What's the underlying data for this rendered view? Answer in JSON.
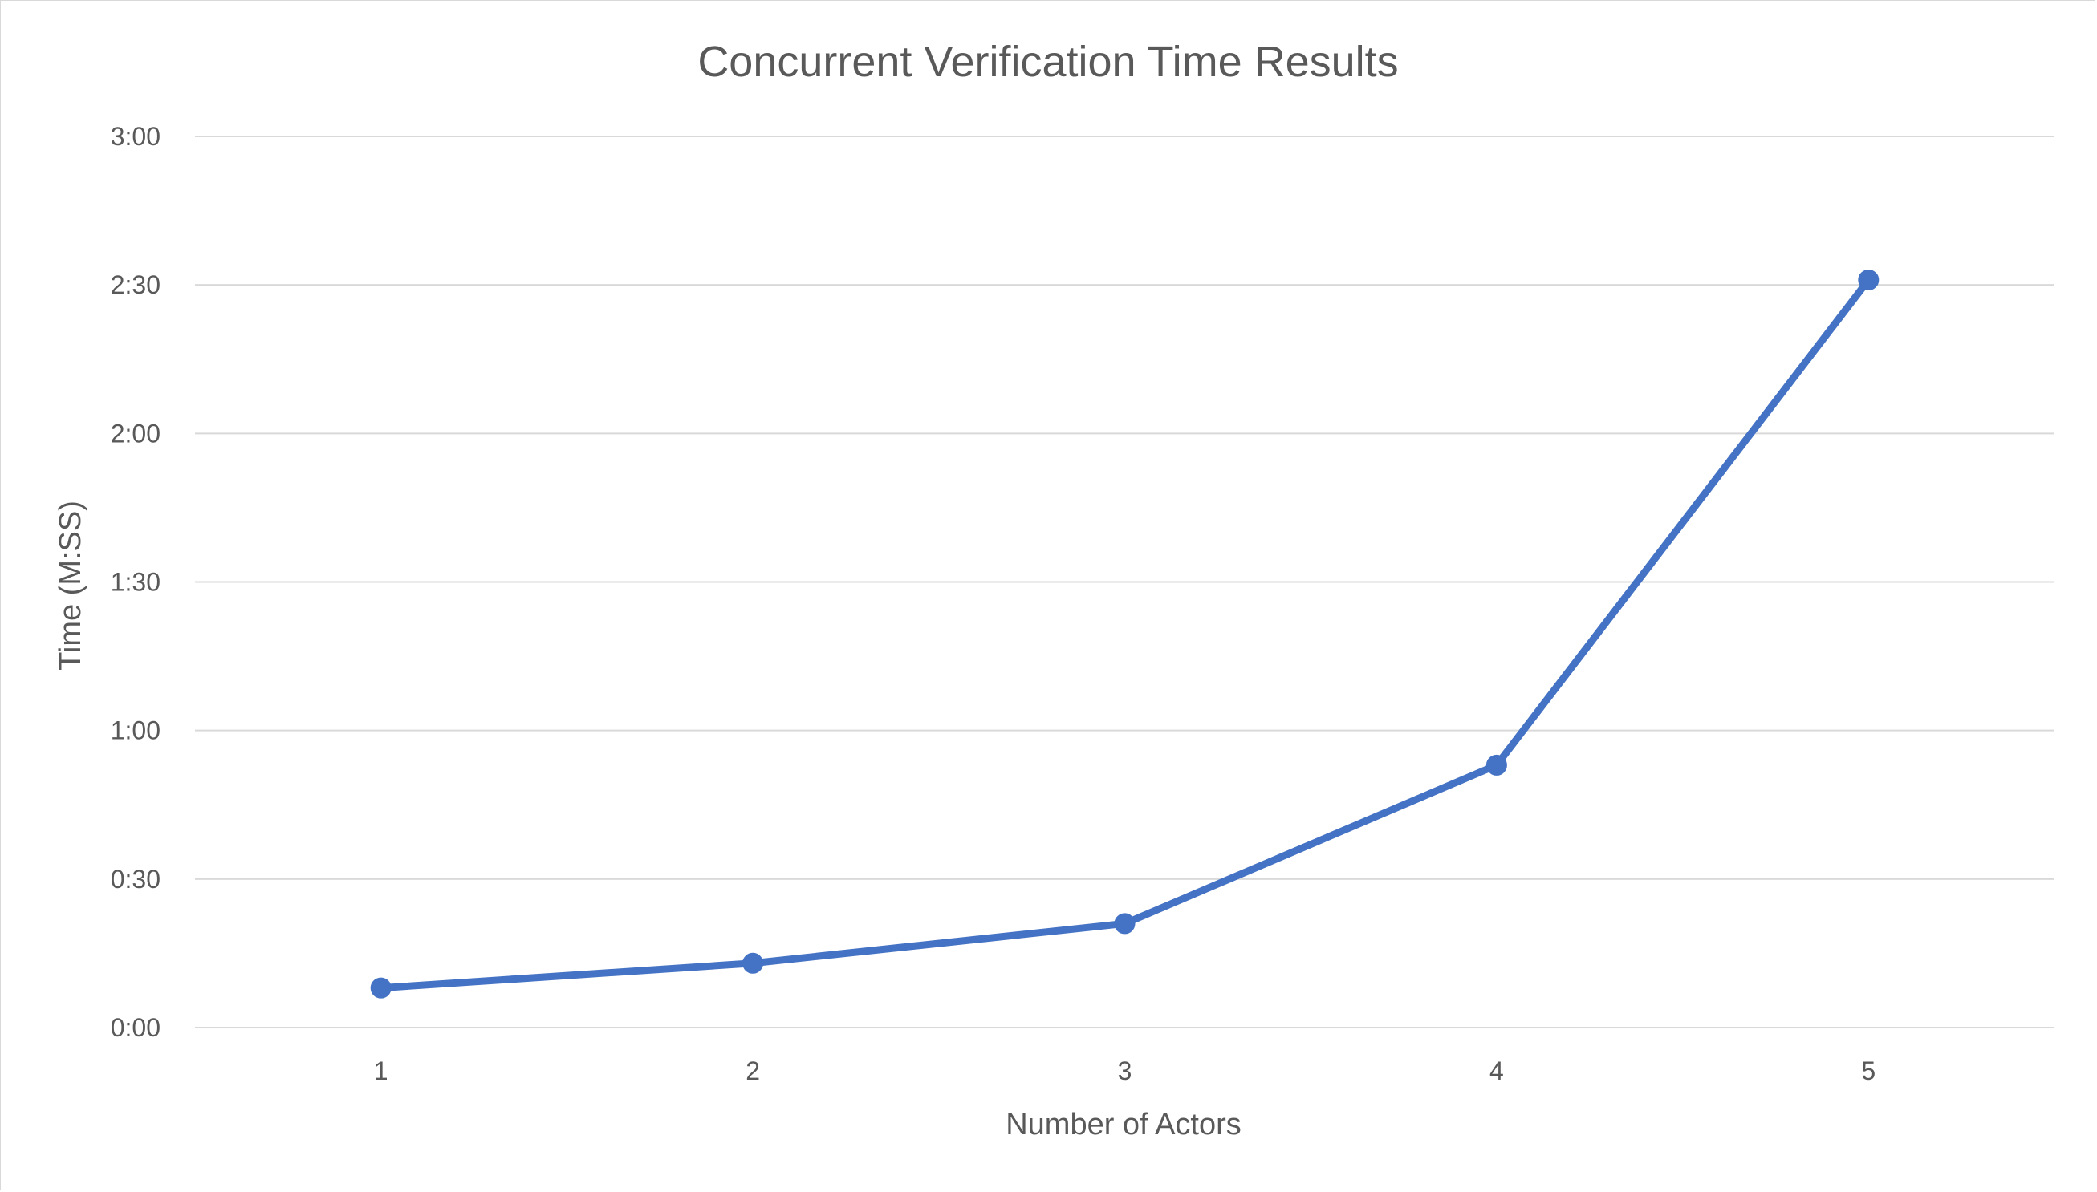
{
  "chart_data": {
    "type": "line",
    "title": "Concurrent Verification Time Results",
    "xlabel": "Number of Actors",
    "ylabel": "Time (M:SS)",
    "categories": [
      "1",
      "2",
      "3",
      "4",
      "5"
    ],
    "series": [
      {
        "values": [
          8,
          13,
          21,
          53,
          151
        ],
        "color": "#4472c4"
      }
    ],
    "y_unit": "seconds",
    "ylim": [
      0,
      180
    ],
    "y_ticks": [
      {
        "value": 0,
        "label": "0:00"
      },
      {
        "value": 30,
        "label": "0:30"
      },
      {
        "value": 60,
        "label": "1:00"
      },
      {
        "value": 90,
        "label": "1:30"
      },
      {
        "value": 120,
        "label": "2:00"
      },
      {
        "value": 150,
        "label": "2:30"
      },
      {
        "value": 180,
        "label": "3:00"
      }
    ],
    "grid": true,
    "legend": "none",
    "colors": {
      "gridline": "#d9d9d9",
      "text": "#595959",
      "series": "#4472c4"
    }
  }
}
